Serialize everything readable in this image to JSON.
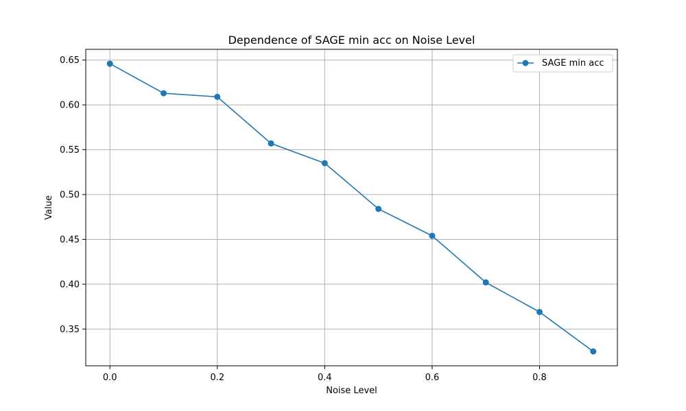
{
  "chart_data": {
    "type": "line",
    "title": "Dependence of SAGE min acc on Noise Level",
    "xlabel": "Noise Level",
    "ylabel": "Value",
    "x": [
      0.0,
      0.1,
      0.2,
      0.3,
      0.4,
      0.5,
      0.6,
      0.7,
      0.8,
      0.9
    ],
    "series": [
      {
        "name": "SAGE min acc",
        "color": "#1f77b4",
        "marker": "circle",
        "values": [
          0.646,
          0.613,
          0.609,
          0.557,
          0.535,
          0.484,
          0.454,
          0.402,
          0.369,
          0.325
        ]
      }
    ],
    "xlim": [
      -0.045,
      0.945
    ],
    "ylim": [
      0.309,
      0.662
    ],
    "xticks": [
      0.0,
      0.2,
      0.4,
      0.6,
      0.8
    ],
    "xtick_labels": [
      "0.0",
      "0.2",
      "0.4",
      "0.6",
      "0.8"
    ],
    "yticks": [
      0.35,
      0.4,
      0.45,
      0.5,
      0.55,
      0.6,
      0.65
    ],
    "ytick_labels": [
      "0.35",
      "0.40",
      "0.45",
      "0.50",
      "0.55",
      "0.60",
      "0.65"
    ],
    "grid": true,
    "legend_position": "top-right"
  }
}
